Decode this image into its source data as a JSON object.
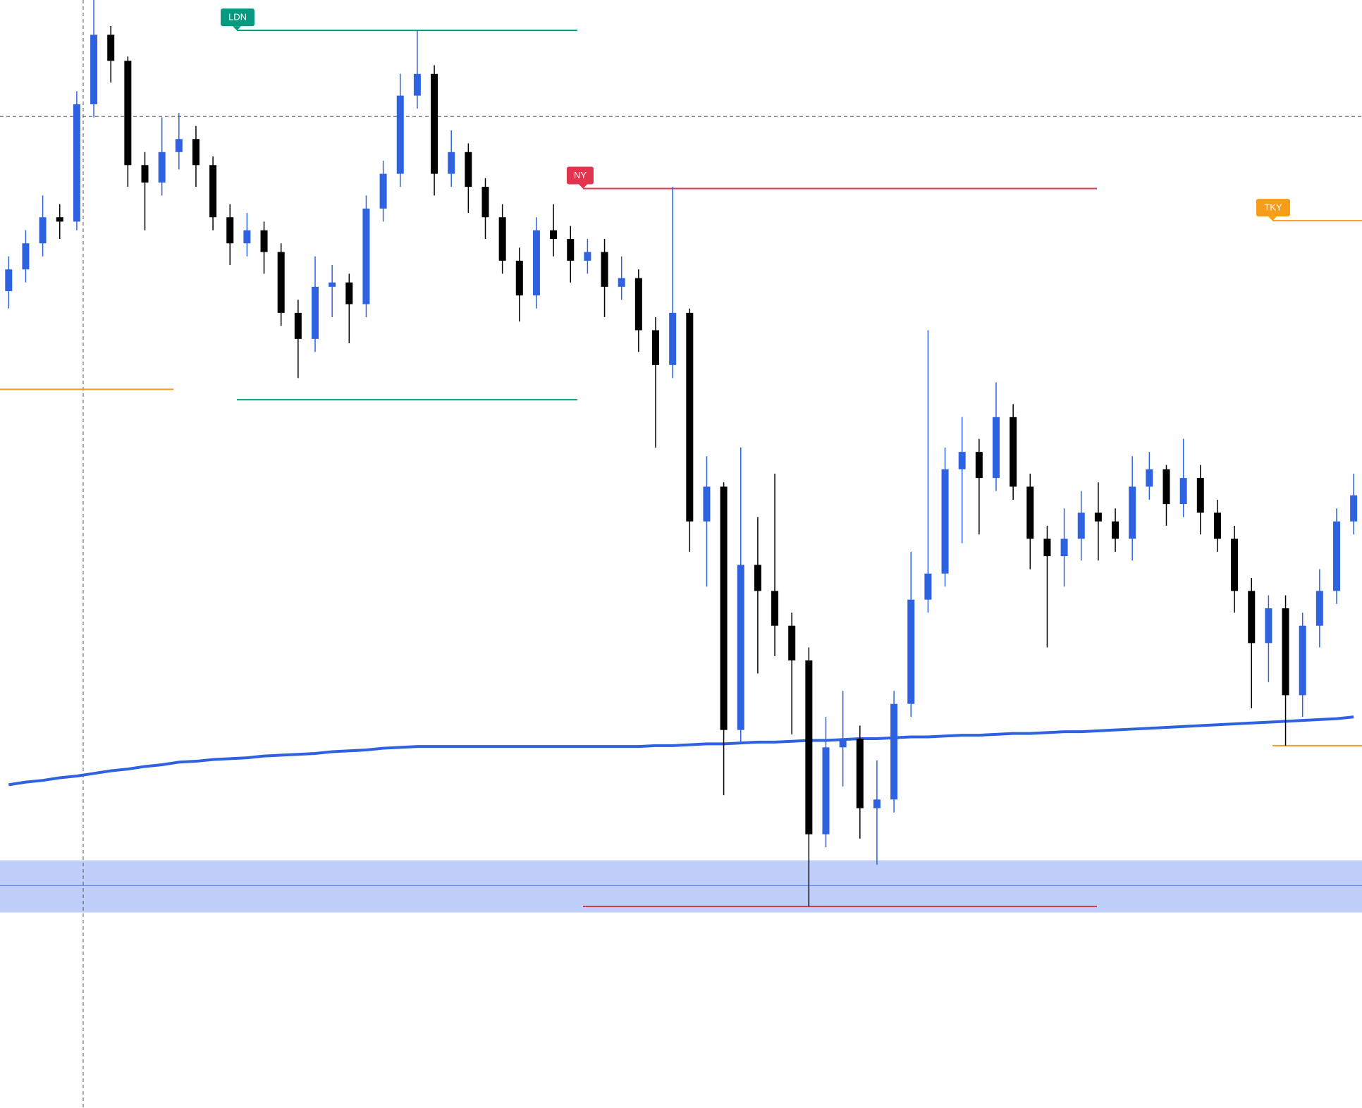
{
  "chart_data": {
    "type": "candlestick",
    "ylim": [
      0,
      127.5
    ],
    "open": [
      94,
      96.5,
      99.5,
      102.5,
      102,
      115.5,
      123.5,
      120.5,
      108.5,
      106.5,
      110,
      111.5,
      108.5,
      102.5,
      99.5,
      101,
      98.5,
      91.5,
      88.5,
      94.5,
      95,
      92.5,
      103.5,
      107.5,
      116.5,
      119,
      107.5,
      110,
      106,
      102.5,
      97.5,
      93.5,
      101,
      100,
      97.5,
      98.5,
      94.5,
      95.5,
      89.5,
      85.5,
      91.5,
      67.5,
      71.5,
      43.5,
      62.5,
      59.5,
      55.5,
      51.5,
      31.5,
      41.5,
      42.5,
      34.5,
      35.5,
      46.5,
      58.5,
      61.5,
      73.5,
      75.5,
      72.5,
      79.5,
      71.5,
      65.5,
      63.5,
      65.5,
      68.5,
      67.5,
      65.5,
      71.5,
      73.5,
      69.5,
      72.5,
      68.5,
      65.5,
      59.5,
      53.5,
      57.5,
      47.5,
      55.5,
      59.5,
      67.5
    ],
    "high": [
      98,
      101,
      105,
      104,
      117,
      127.5,
      124.5,
      121,
      110,
      114,
      114.5,
      113,
      109.5,
      104,
      103,
      102,
      99.5,
      93,
      98,
      97,
      96,
      105,
      109,
      119,
      124,
      120,
      112.5,
      111,
      107,
      104,
      99,
      102.5,
      104,
      101.5,
      100,
      100,
      98,
      96.5,
      91,
      106,
      92,
      75,
      72,
      76,
      68,
      73,
      57,
      53,
      45,
      48,
      44,
      40,
      48,
      64,
      89.5,
      76,
      79.5,
      77,
      83.5,
      81,
      73,
      67,
      69,
      71,
      72,
      69,
      75,
      75.5,
      74,
      77,
      74,
      70,
      67,
      61,
      59,
      59,
      57,
      62,
      69,
      73
    ],
    "low": [
      92,
      95,
      98,
      100,
      101,
      114,
      118,
      106,
      101,
      105,
      108,
      106,
      101,
      97,
      98,
      96,
      90,
      84,
      87,
      91,
      88,
      91,
      102,
      106,
      115,
      105,
      106,
      103,
      100,
      96,
      90.5,
      92,
      98,
      95,
      96,
      91,
      93,
      87,
      76,
      84,
      64,
      60,
      36,
      42,
      50,
      52,
      43,
      23.2,
      30,
      37,
      31,
      28,
      34,
      45,
      57,
      60,
      65,
      66,
      71,
      70,
      62,
      53,
      60,
      63,
      63,
      64,
      63,
      70,
      67,
      68,
      66,
      64,
      57,
      46,
      49,
      41.7,
      45,
      53,
      58,
      66
    ],
    "close": [
      96.5,
      99.5,
      102.5,
      102,
      115.5,
      123.5,
      120.5,
      108.5,
      106.5,
      110,
      111.5,
      108.5,
      102.5,
      99.5,
      101,
      98.5,
      91.5,
      88.5,
      94.5,
      95,
      92.5,
      103.5,
      107.5,
      116.5,
      119,
      107.5,
      110,
      106,
      102.5,
      97.5,
      93.5,
      101,
      100,
      97.5,
      98.5,
      94.5,
      95.5,
      89.5,
      85.5,
      91.5,
      67.5,
      71.5,
      43.5,
      62.5,
      59.5,
      55.5,
      51.5,
      31.5,
      41.5,
      42.5,
      34.5,
      35.5,
      46.5,
      58.5,
      61.5,
      73.5,
      75.5,
      72.5,
      79.5,
      71.5,
      65.5,
      63.5,
      65.5,
      68.5,
      67.5,
      65.5,
      71.5,
      73.5,
      69.5,
      72.5,
      68.5,
      65.5,
      59.5,
      53.5,
      57.5,
      47.5,
      55.5,
      59.5,
      67.5,
      70.5
    ],
    "up_color": "#2e62e0",
    "down_color": "#000000",
    "ma": {
      "color": "#2e62e0",
      "values": [
        37.2,
        37.5,
        37.7,
        38.0,
        38.2,
        38.5,
        38.8,
        39.0,
        39.3,
        39.5,
        39.8,
        39.9,
        40.1,
        40.2,
        40.3,
        40.5,
        40.6,
        40.7,
        40.8,
        41.0,
        41.1,
        41.2,
        41.4,
        41.5,
        41.6,
        41.6,
        41.6,
        41.6,
        41.6,
        41.6,
        41.6,
        41.6,
        41.6,
        41.6,
        41.6,
        41.6,
        41.6,
        41.6,
        41.7,
        41.7,
        41.8,
        41.9,
        41.9,
        42.0,
        42.1,
        42.1,
        42.2,
        42.3,
        42.3,
        42.4,
        42.5,
        42.5,
        42.6,
        42.7,
        42.7,
        42.8,
        42.9,
        42.9,
        43.0,
        43.1,
        43.1,
        43.2,
        43.3,
        43.3,
        43.4,
        43.5,
        43.6,
        43.7,
        43.8,
        43.9,
        44.0,
        44.1,
        44.2,
        44.3,
        44.4,
        44.5,
        44.6,
        44.7,
        44.8,
        45.0
      ]
    },
    "sessions": [
      {
        "label": "LDN",
        "color": "#089981",
        "high": 124,
        "low": 81.5
      },
      {
        "label": "NY",
        "color": "#e0344f",
        "high": 105.8,
        "low": 23.2
      },
      {
        "label": "TKY",
        "color": "#f59c1a",
        "high": 102.1,
        "low": 41.7
      }
    ],
    "levels": [
      {
        "value": 82.7,
        "color": "#f59c1a"
      }
    ],
    "zone": {
      "top": 28.5,
      "bottom": 22.5,
      "mid": 25.6,
      "color": "#2e62e0"
    },
    "crosshair": 114.1
  }
}
